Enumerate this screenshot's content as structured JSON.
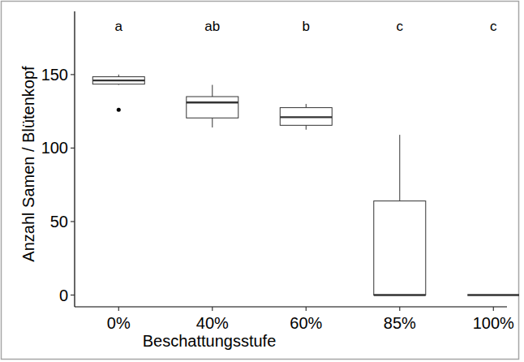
{
  "chart_data": {
    "type": "box",
    "x_label": "Beschattungsstufe",
    "y_label": "Anzahl Samen / Blütenkopf",
    "categories": [
      "0%",
      "40%",
      "60%",
      "85%",
      "100%"
    ],
    "min": [
      143,
      114,
      112.5,
      0,
      0
    ],
    "q1": [
      143.5,
      120.5,
      115.5,
      0,
      0
    ],
    "median": [
      146,
      131,
      121,
      0,
      0
    ],
    "q3": [
      148.5,
      135,
      127.5,
      64,
      0
    ],
    "max": [
      150,
      143,
      130,
      109,
      0
    ],
    "outliers": [
      [
        126
      ],
      [],
      [],
      [],
      []
    ],
    "annotations": [
      "a",
      "ab",
      "b",
      "c",
      "c"
    ],
    "ylim": [
      -8,
      193
    ],
    "yticks": [
      0,
      50,
      100,
      150
    ],
    "grid": false
  }
}
